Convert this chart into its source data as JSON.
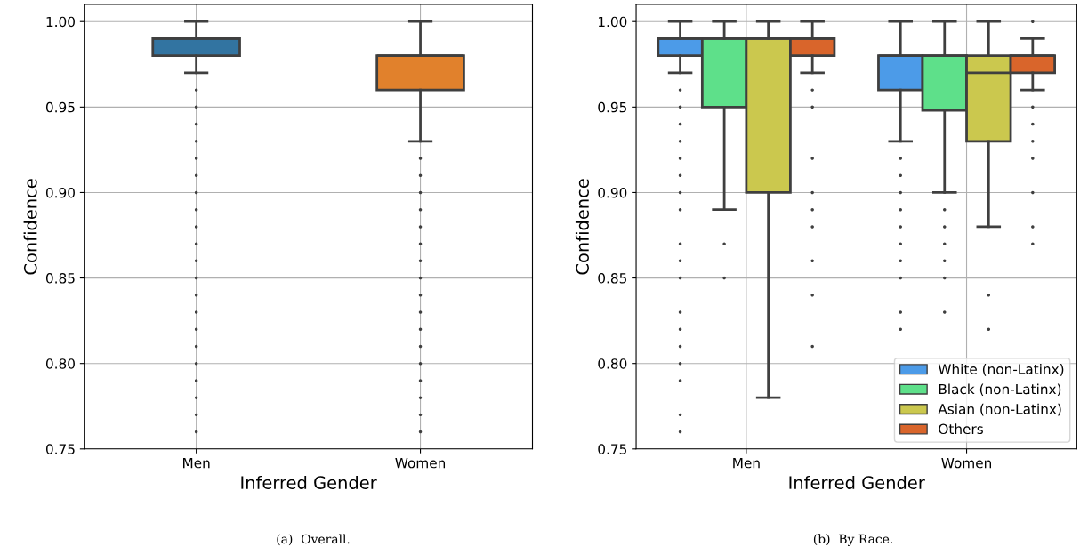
{
  "chart_data": [
    {
      "type": "box",
      "xlabel": "Inferred Gender",
      "ylabel": "Confidence",
      "categories": [
        "Men",
        "Women"
      ],
      "colors": [
        "#3274a1",
        "#e1812c"
      ],
      "boxes": [
        {
          "low": 0.97,
          "q1": 0.98,
          "median": 0.99,
          "q3": 0.99,
          "high": 1.0,
          "outliers": [
            0.96,
            0.95,
            0.94,
            0.93,
            0.92,
            0.91,
            0.9,
            0.89,
            0.88,
            0.87,
            0.86,
            0.85,
            0.84,
            0.83,
            0.82,
            0.81,
            0.8,
            0.79,
            0.78,
            0.77,
            0.76
          ]
        },
        {
          "low": 0.93,
          "q1": 0.96,
          "median": 0.98,
          "q3": 0.98,
          "high": 1.0,
          "outliers": [
            0.92,
            0.91,
            0.9,
            0.89,
            0.88,
            0.87,
            0.86,
            0.85,
            0.84,
            0.83,
            0.82,
            0.81,
            0.8,
            0.79,
            0.78,
            0.77,
            0.76
          ]
        }
      ],
      "ylim": [
        0.75,
        1.01
      ],
      "yticks": [
        {
          "value": 0.75,
          "label": "0.75"
        },
        {
          "value": 0.8,
          "label": "0.80"
        },
        {
          "value": 0.85,
          "label": "0.85"
        },
        {
          "value": 0.9,
          "label": "0.90"
        },
        {
          "value": 0.95,
          "label": "0.95"
        },
        {
          "value": 1.0,
          "label": "1.00"
        }
      ],
      "grid": true,
      "annotations": [
        "(a)  Overall."
      ]
    },
    {
      "type": "box",
      "xlabel": "Inferred Gender",
      "ylabel": "Confidence",
      "categories": [
        "Men",
        "Women"
      ],
      "series": [
        {
          "name": "White (non-Latinx)",
          "color": "#4c9be8",
          "boxes": [
            {
              "low": 0.97,
              "q1": 0.98,
              "median": 0.99,
              "q3": 0.99,
              "high": 1.0,
              "outliers": [
                0.96,
                0.95,
                0.94,
                0.93,
                0.92,
                0.91,
                0.9,
                0.89,
                0.87,
                0.86,
                0.85,
                0.83,
                0.82,
                0.81,
                0.8,
                0.79,
                0.77,
                0.76
              ]
            },
            {
              "low": 0.93,
              "q1": 0.96,
              "median": 0.98,
              "q3": 0.98,
              "high": 1.0,
              "outliers": [
                0.92,
                0.91,
                0.9,
                0.89,
                0.88,
                0.87,
                0.86,
                0.85,
                0.83,
                0.82
              ]
            }
          ]
        },
        {
          "name": "Black (non-Latinx)",
          "color": "#5ee08a",
          "boxes": [
            {
              "low": 0.89,
              "q1": 0.95,
              "median": 0.99,
              "q3": 0.99,
              "high": 1.0,
              "outliers": [
                0.87,
                0.85
              ]
            },
            {
              "low": 0.9,
              "q1": 0.948,
              "median": 0.98,
              "q3": 0.98,
              "high": 1.0,
              "outliers": [
                0.89,
                0.88,
                0.87,
                0.86,
                0.85,
                0.83
              ]
            }
          ]
        },
        {
          "name": "Asian (non-Latinx)",
          "color": "#cbc84e",
          "boxes": [
            {
              "low": 0.78,
              "q1": 0.9,
              "median": 0.99,
              "q3": 0.99,
              "high": 1.0
            },
            {
              "low": 0.88,
              "q1": 0.93,
              "median": 0.97,
              "q3": 0.98,
              "high": 1.0,
              "outliers": [
                0.84,
                0.82
              ]
            }
          ]
        },
        {
          "name": "Others",
          "color": "#d9652b",
          "boxes": [
            {
              "low": 0.97,
              "q1": 0.98,
              "median": 0.99,
              "q3": 0.99,
              "high": 1.0,
              "outliers": [
                0.96,
                0.95,
                0.92,
                0.9,
                0.89,
                0.88,
                0.86,
                0.84,
                0.81
              ]
            },
            {
              "low": 0.96,
              "q1": 0.97,
              "median": 0.98,
              "q3": 0.98,
              "high": 0.99,
              "outliers": [
                1.0,
                0.95,
                0.94,
                0.93,
                0.92,
                0.9,
                0.88,
                0.87
              ]
            }
          ]
        }
      ],
      "ylim": [
        0.75,
        1.01
      ],
      "yticks": [
        {
          "value": 0.75,
          "label": "0.75"
        },
        {
          "value": 0.8,
          "label": "0.80"
        },
        {
          "value": 0.85,
          "label": "0.85"
        },
        {
          "value": 0.9,
          "label": "0.90"
        },
        {
          "value": 0.95,
          "label": "0.95"
        },
        {
          "value": 1.0,
          "label": "1.00"
        }
      ],
      "grid": true,
      "legend": "bottom right",
      "annotations": [
        "(b)  By Race."
      ]
    }
  ]
}
